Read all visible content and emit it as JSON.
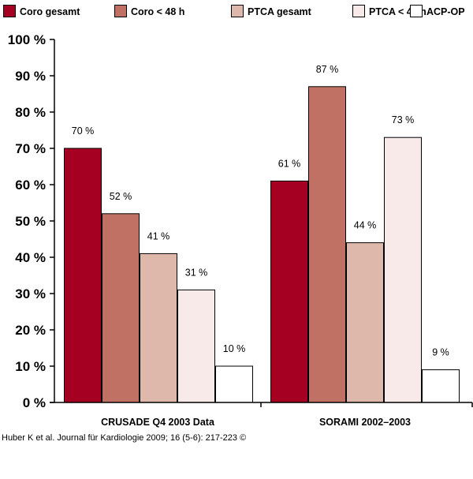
{
  "chart_data": {
    "type": "bar",
    "categories": [
      "CRUSADE Q4 2003 Data",
      "SORAMI 2002–2003"
    ],
    "series": [
      {
        "name": "Coro gesamt",
        "color": "#a50021",
        "values": [
          70,
          61
        ],
        "labels": [
          "70 %",
          "61 %"
        ]
      },
      {
        "name": "Coro < 48 h",
        "color": "#c07163",
        "values": [
          52,
          87
        ],
        "labels": [
          "52 %",
          "87 %"
        ]
      },
      {
        "name": "PTCA gesamt",
        "color": "#dfb8ac",
        "values": [
          41,
          44
        ],
        "labels": [
          "41 %",
          "44 %"
        ]
      },
      {
        "name": "PTCA < 48 h",
        "color": "#f9eaea",
        "values": [
          31,
          73
        ],
        "labels": [
          "31 %",
          "73 %"
        ]
      },
      {
        "name": "ACP-OP",
        "color": "#ffffff",
        "values": [
          10,
          9
        ],
        "labels": [
          "10 %",
          "9 %"
        ]
      }
    ],
    "ylim": [
      0,
      100
    ],
    "yticks": [
      0,
      10,
      20,
      30,
      40,
      50,
      60,
      70,
      80,
      90,
      100
    ],
    "ytick_labels": [
      "0 %",
      "10 %",
      "20 %",
      "30 %",
      "40 %",
      "50 %",
      "60 %",
      "70 %",
      "80 %",
      "90 %",
      "100 %"
    ],
    "title": "",
    "xlabel": "",
    "ylabel": "",
    "grid": false,
    "legend_position": "top"
  },
  "footer": {
    "credit": "Huber K et al. Journal für Kardiologie 2009; 16 (5-6): 217-223 ©"
  }
}
